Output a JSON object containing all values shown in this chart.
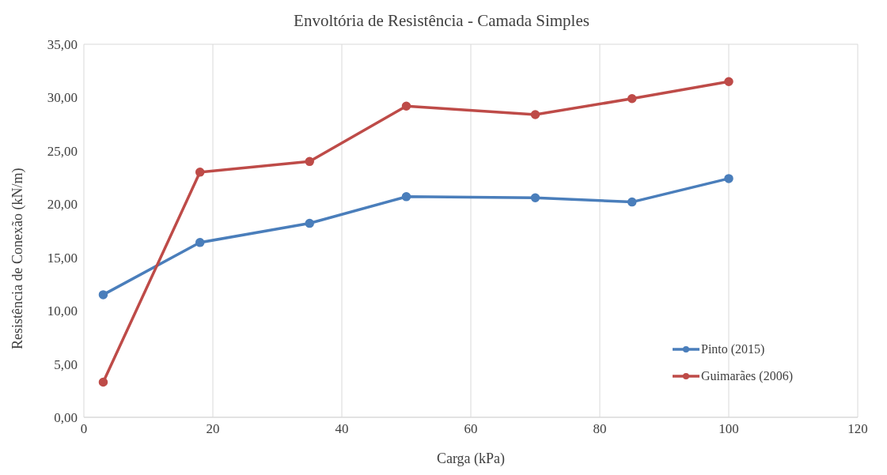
{
  "chart_data": {
    "type": "line",
    "title": "Envoltória de Resistência - Camada Simples",
    "xlabel": "Carga (kPa)",
    "ylabel": "Resistência de Conexão (kN/m)",
    "x": [
      3,
      18,
      35,
      50,
      70,
      85,
      100
    ],
    "series": [
      {
        "name": "Pinto (2015)",
        "color": "#4a7ebb",
        "values": [
          11.5,
          16.4,
          18.2,
          20.7,
          20.6,
          20.2,
          22.4
        ]
      },
      {
        "name": "Guimarães (2006)",
        "color": "#be4b48",
        "values": [
          3.3,
          23.0,
          24.0,
          29.2,
          28.4,
          29.9,
          31.5
        ]
      }
    ],
    "xlim": [
      0,
      120
    ],
    "xticks": [
      0,
      20,
      40,
      60,
      80,
      100,
      120
    ],
    "ylim": [
      0,
      35
    ],
    "yticks": [
      {
        "value": 0,
        "label": "0,00"
      },
      {
        "value": 5,
        "label": "5,00"
      },
      {
        "value": 10,
        "label": "10,00"
      },
      {
        "value": 15,
        "label": "15,00"
      },
      {
        "value": 20,
        "label": "20,00"
      },
      {
        "value": 25,
        "label": "25,00"
      },
      {
        "value": 30,
        "label": "30,00"
      },
      {
        "value": 35,
        "label": "35,00"
      }
    ],
    "grid": true,
    "legend": "bottom right",
    "marker": "circle",
    "line_style": "solid"
  }
}
